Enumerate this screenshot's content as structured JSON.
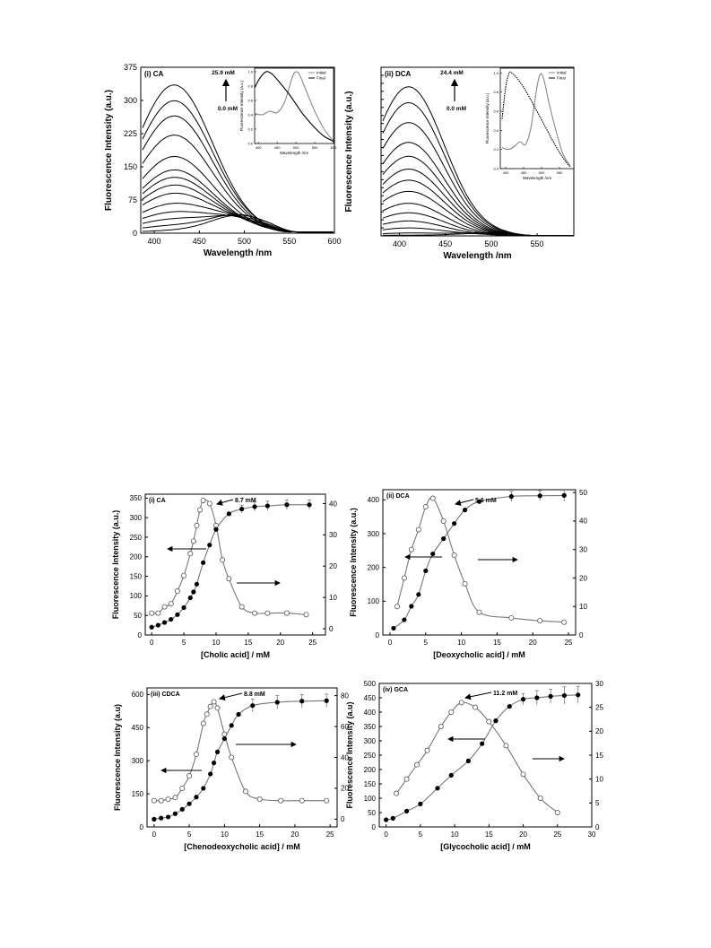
{
  "chart_data": [
    {
      "type": "line",
      "panel_label": "(i) CA",
      "xlabel": "Wavelength /nm",
      "ylabel": "Fluorescence Intensity (a.u.)",
      "xlim": [
        385,
        600
      ],
      "ylim": [
        0,
        375
      ],
      "x_ticks": [
        400,
        450,
        500,
        550,
        600
      ],
      "y_ticks": [
        0,
        75,
        150,
        225,
        300,
        375
      ],
      "top_label": "25.9 mM",
      "bottom_label": "0.0 mM",
      "curves": [
        {
          "peak_nm": 495,
          "peak_value": 45,
          "blue_frac": 0.12,
          "end_value": 2
        },
        {
          "peak_nm": 492,
          "peak_value": 55,
          "blue_frac": 0.3,
          "end_value": 3
        },
        {
          "peak_nm": 470,
          "peak_value": 62,
          "blue_frac": 0.5,
          "end_value": 3
        },
        {
          "peak_nm": 455,
          "peak_value": 72,
          "blue_frac": 0.65,
          "end_value": 3
        },
        {
          "peak_nm": 440,
          "peak_value": 88,
          "blue_frac": 0.75,
          "end_value": 3
        },
        {
          "peak_nm": 432,
          "peak_value": 105,
          "blue_frac": 0.85,
          "end_value": 3
        },
        {
          "peak_nm": 428,
          "peak_value": 120,
          "blue_frac": 0.9,
          "end_value": 3
        },
        {
          "peak_nm": 427,
          "peak_value": 135,
          "blue_frac": 0.93,
          "end_value": 3
        },
        {
          "peak_nm": 425,
          "peak_value": 150,
          "blue_frac": 0.95,
          "end_value": 3
        },
        {
          "peak_nm": 425,
          "peak_value": 180,
          "blue_frac": 0.96,
          "end_value": 3
        },
        {
          "peak_nm": 423,
          "peak_value": 228,
          "blue_frac": 0.97,
          "end_value": 3
        },
        {
          "peak_nm": 422,
          "peak_value": 270,
          "blue_frac": 0.98,
          "end_value": 3
        },
        {
          "peak_nm": 422,
          "peak_value": 305,
          "blue_frac": 0.98,
          "end_value": 3
        },
        {
          "peak_nm": 421,
          "peak_value": 338,
          "blue_frac": 0.99,
          "end_value": 3
        }
      ],
      "inset": {
        "xlabel": "Wavelength /nm",
        "ylabel": "Fluorescence Intensity (a.u.)",
        "xlim": [
          390,
          600
        ],
        "ylim": [
          0,
          1.05
        ],
        "x_ticks": [
          400,
          450,
          500,
          550,
          600
        ],
        "y_ticks": [
          0.0,
          0.2,
          0.4,
          0.6,
          0.8,
          1.0
        ],
        "legend": [
          "Initial",
          "Final"
        ],
        "initial": {
          "x": [
            390,
            410,
            430,
            450,
            470,
            490,
            500,
            510,
            530,
            550,
            575,
            600
          ],
          "y": [
            0.42,
            0.4,
            0.45,
            0.43,
            0.58,
            0.92,
            1.0,
            0.95,
            0.7,
            0.45,
            0.2,
            0.03
          ]
        },
        "final": {
          "x": [
            390,
            405,
            420,
            430,
            440,
            460,
            480,
            500,
            520,
            550,
            575,
            600
          ],
          "y": [
            0.78,
            0.92,
            1.0,
            0.99,
            0.95,
            0.83,
            0.7,
            0.55,
            0.4,
            0.22,
            0.1,
            0.03
          ]
        }
      }
    },
    {
      "type": "line",
      "panel_label": "(ii) DCA",
      "xlabel": "Wavelength /nm",
      "ylabel": "Fluorescence Intensity (a.u.)",
      "xlim": [
        380,
        590
      ],
      "ylim": [
        0,
        420
      ],
      "x_ticks": [
        400,
        450,
        500,
        550
      ],
      "top_label": "24.4 mM",
      "bottom_label": "0.0 mM",
      "curves": [
        {
          "peak_nm": 495,
          "peak_value": 8,
          "blue_frac": 0.2,
          "end_value": 1
        },
        {
          "peak_nm": 470,
          "peak_value": 14,
          "blue_frac": 0.5,
          "end_value": 1
        },
        {
          "peak_nm": 430,
          "peak_value": 22,
          "blue_frac": 0.9,
          "end_value": 1
        },
        {
          "peak_nm": 415,
          "peak_value": 38,
          "blue_frac": 0.98,
          "end_value": 1
        },
        {
          "peak_nm": 412,
          "peak_value": 58,
          "blue_frac": 0.99,
          "end_value": 1
        },
        {
          "peak_nm": 410,
          "peak_value": 82,
          "blue_frac": 0.99,
          "end_value": 1
        },
        {
          "peak_nm": 410,
          "peak_value": 112,
          "blue_frac": 0.99,
          "end_value": 1
        },
        {
          "peak_nm": 410,
          "peak_value": 140,
          "blue_frac": 0.99,
          "end_value": 1
        },
        {
          "peak_nm": 410,
          "peak_value": 168,
          "blue_frac": 0.99,
          "end_value": 1
        },
        {
          "peak_nm": 410,
          "peak_value": 200,
          "blue_frac": 0.99,
          "end_value": 1
        },
        {
          "peak_nm": 410,
          "peak_value": 235,
          "blue_frac": 0.99,
          "end_value": 1
        },
        {
          "peak_nm": 410,
          "peak_value": 285,
          "blue_frac": 0.99,
          "end_value": 1
        },
        {
          "peak_nm": 410,
          "peak_value": 335,
          "blue_frac": 0.99,
          "end_value": 1
        },
        {
          "peak_nm": 410,
          "peak_value": 375,
          "blue_frac": 0.99,
          "end_value": 1
        }
      ],
      "inset": {
        "xlabel": "Wavelength /nm",
        "ylabel": "Fluorescence Intensity (a.u.)",
        "xlim": [
          385,
          590
        ],
        "ylim": [
          0,
          1.05
        ],
        "x_ticks": [
          400,
          450,
          500,
          550
        ],
        "y_ticks": [
          0.0,
          0.2,
          0.4,
          0.6,
          0.8,
          1.0
        ],
        "legend": [
          "Initial",
          "Final"
        ],
        "initial": {
          "x": [
            390,
            405,
            420,
            440,
            455,
            470,
            485,
            495,
            505,
            520,
            540,
            560,
            580
          ],
          "y": [
            0.22,
            0.2,
            0.22,
            0.28,
            0.25,
            0.42,
            0.8,
            0.98,
            0.95,
            0.7,
            0.4,
            0.15,
            0.03
          ]
        },
        "final": {
          "x": [
            390,
            400,
            410,
            420,
            435,
            450,
            470,
            490,
            510,
            530,
            550,
            570,
            580
          ],
          "y": [
            0.52,
            0.85,
            1.0,
            0.99,
            0.93,
            0.85,
            0.72,
            0.58,
            0.44,
            0.3,
            0.17,
            0.06,
            0.02
          ]
        }
      }
    },
    {
      "type": "scatter",
      "panel_label": "(i) CA",
      "xlabel": "[Cholic acid] / mM",
      "ylabel": "Fluorescence Intensity (a.u.)",
      "xlim": [
        -1,
        27
      ],
      "x_ticks": [
        0,
        5,
        10,
        15,
        20,
        25
      ],
      "ylim": [
        0,
        360
      ],
      "y_ticks": [
        0,
        50,
        100,
        150,
        200,
        250,
        300,
        350
      ],
      "y2lim": [
        -2,
        43
      ],
      "y2_ticks": [
        0,
        10,
        20,
        30,
        40
      ],
      "peak_label": "8.7 mM",
      "intensity": {
        "x": [
          0,
          1,
          2,
          3,
          4,
          5,
          6,
          6.5,
          7,
          8,
          9,
          10,
          12,
          14,
          16,
          18,
          21,
          24.5
        ],
        "y": [
          20,
          25,
          32,
          40,
          52,
          70,
          95,
          110,
          130,
          185,
          230,
          270,
          310,
          322,
          328,
          330,
          333,
          333
        ],
        "err": [
          0,
          0,
          0,
          0,
          0,
          0,
          0,
          0,
          0,
          0,
          0,
          0,
          0,
          10,
          12,
          12,
          12,
          12
        ]
      },
      "derivative": {
        "x": [
          0,
          1,
          2,
          3,
          4,
          5,
          6,
          6.5,
          7,
          7.5,
          8,
          9,
          10,
          11,
          12,
          14,
          16,
          18,
          21,
          24
        ],
        "y": [
          5,
          5,
          7,
          8,
          12,
          17,
          24,
          28,
          33,
          38,
          41,
          40,
          33,
          22,
          16,
          7,
          5,
          5,
          5,
          4.5
        ]
      }
    },
    {
      "type": "scatter",
      "panel_label": "(ii) DCA",
      "xlabel": "[Deoxycholic acid] / mM",
      "ylabel": "Fluorescence Intensity (a.u.)",
      "xlim": [
        -1,
        26
      ],
      "x_ticks": [
        0,
        5,
        10,
        15,
        20,
        25
      ],
      "ylim": [
        0,
        430
      ],
      "y_ticks": [
        0,
        100,
        200,
        300,
        400
      ],
      "y2lim": [
        0,
        51
      ],
      "y2_ticks": [
        0,
        10,
        20,
        30,
        40,
        50
      ],
      "peak_label": "5.6 mM",
      "intensity": {
        "x": [
          0.5,
          2,
          3,
          4,
          5,
          6,
          7.5,
          9,
          10.5,
          12.5,
          17,
          21,
          24.4
        ],
        "y": [
          20,
          45,
          85,
          120,
          190,
          240,
          285,
          330,
          370,
          395,
          410,
          412,
          413
        ],
        "err": [
          0,
          0,
          0,
          0,
          0,
          0,
          0,
          0,
          0,
          0,
          15,
          15,
          18
        ]
      },
      "derivative": {
        "x": [
          1,
          2,
          3,
          4,
          5,
          6,
          7.5,
          9,
          10.5,
          12.5,
          17,
          21,
          24.4
        ],
        "y": [
          10,
          20,
          30,
          37,
          45,
          48,
          40,
          28,
          18,
          8,
          6,
          5,
          4.5
        ]
      }
    },
    {
      "type": "scatter",
      "panel_label": "(iii) CDCA",
      "xlabel": "[Chenodeoxycholic acid] / mM",
      "ylabel": "Fluorescence Intensity (a.u)",
      "xlim": [
        -1,
        26
      ],
      "x_ticks": [
        0,
        5,
        10,
        15,
        20,
        25
      ],
      "ylim": [
        0,
        630
      ],
      "y_ticks": [
        0,
        150,
        300,
        450,
        600
      ],
      "y2lim": [
        -5,
        85
      ],
      "y2_ticks": [
        0,
        20,
        40,
        60,
        80
      ],
      "peak_label": "8.8 mM",
      "intensity": {
        "x": [
          0,
          1,
          2,
          3,
          4,
          5,
          6,
          7,
          8,
          8.5,
          9,
          10,
          11,
          12,
          14,
          17.5,
          21,
          24.5
        ],
        "y": [
          35,
          40,
          45,
          60,
          80,
          105,
          135,
          175,
          240,
          290,
          340,
          400,
          460,
          510,
          550,
          565,
          570,
          572
        ],
        "err": [
          0,
          0,
          0,
          0,
          0,
          0,
          0,
          0,
          0,
          0,
          0,
          0,
          0,
          0,
          30,
          30,
          30,
          30
        ]
      },
      "derivative": {
        "x": [
          0,
          1,
          2,
          3,
          4,
          5,
          6,
          7,
          7.5,
          8,
          8.5,
          9,
          10,
          11,
          13,
          15,
          18,
          21,
          24.5
        ],
        "y": [
          12,
          12,
          13,
          14,
          20,
          28,
          42,
          62,
          68,
          73,
          76,
          72,
          55,
          40,
          18,
          13,
          12,
          12,
          12
        ]
      }
    },
    {
      "type": "scatter",
      "panel_label": "(iv) GCA",
      "xlabel": "[Glycocholic acid] / mM",
      "ylabel": "Fluorescence Intensity (a.u)",
      "xlim": [
        -1,
        30
      ],
      "x_ticks": [
        0,
        5,
        10,
        15,
        20,
        25,
        30
      ],
      "ylim": [
        0,
        500
      ],
      "y_ticks": [
        0,
        50,
        100,
        150,
        200,
        250,
        300,
        350,
        400,
        450,
        500
      ],
      "y2lim": [
        0,
        30
      ],
      "y2_ticks": [
        0,
        5,
        10,
        15,
        20,
        25,
        30
      ],
      "peak_label": "11.2 mM",
      "intensity": {
        "x": [
          0,
          1,
          3,
          5,
          7.5,
          9.5,
          12,
          14,
          16,
          18,
          20,
          22,
          24,
          26,
          28
        ],
        "y": [
          25,
          30,
          55,
          80,
          135,
          180,
          230,
          290,
          370,
          420,
          445,
          450,
          455,
          458,
          460
        ],
        "err": [
          0,
          0,
          0,
          0,
          0,
          0,
          0,
          0,
          0,
          0,
          20,
          25,
          25,
          30,
          30
        ]
      },
      "derivative": {
        "x": [
          1.5,
          3,
          4.5,
          6,
          8,
          9.5,
          11,
          13,
          15,
          17.5,
          20,
          22.5,
          25
        ],
        "y": [
          7,
          10,
          13,
          16,
          21,
          24,
          26,
          25,
          22,
          17,
          11,
          6,
          3
        ]
      }
    }
  ]
}
